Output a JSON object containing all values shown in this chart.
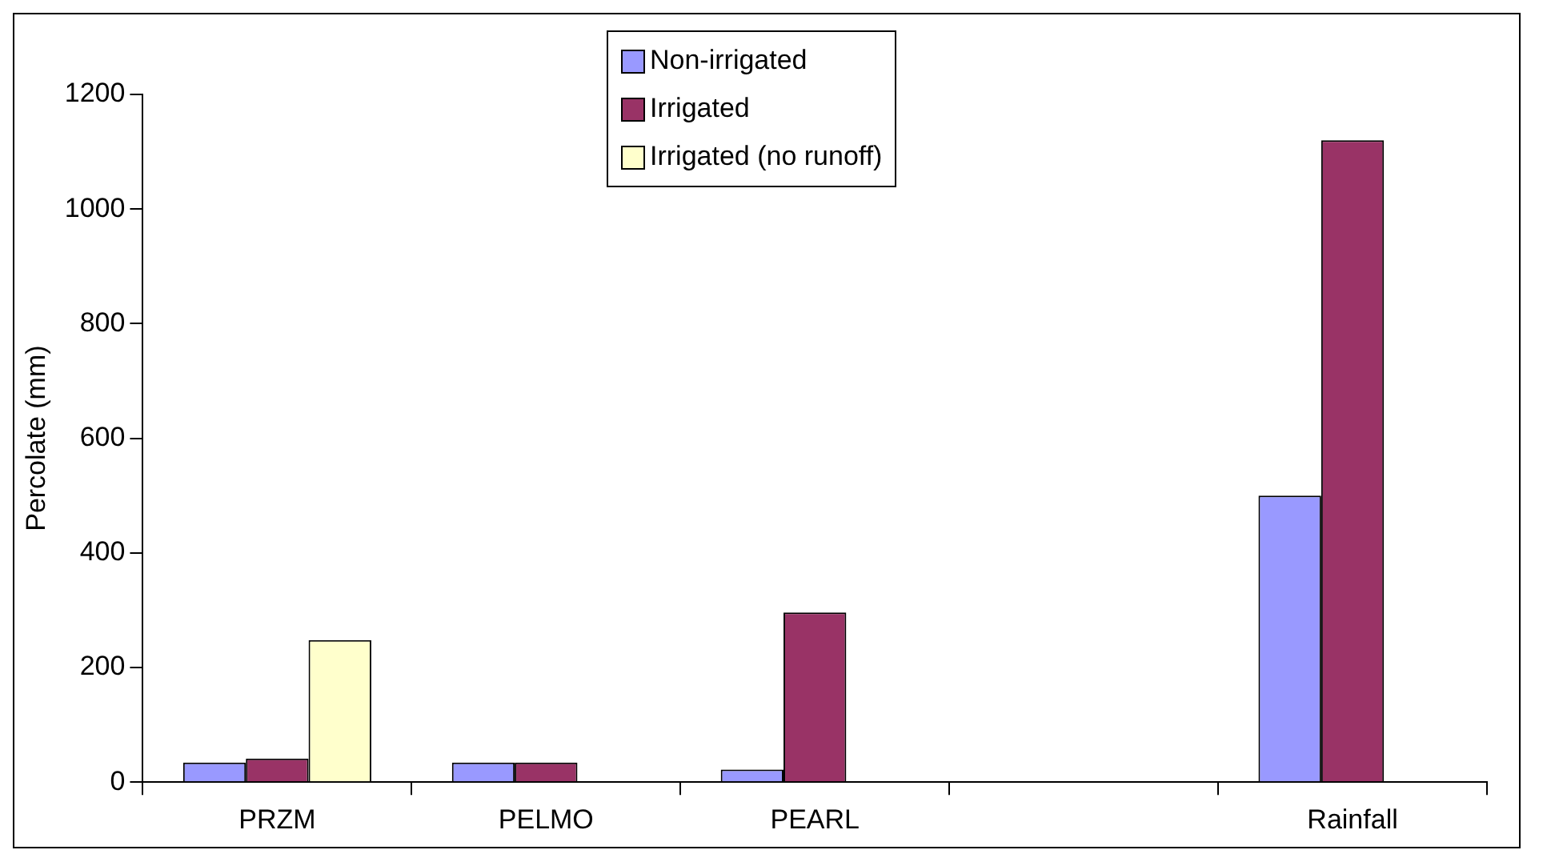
{
  "chart_data": {
    "type": "bar",
    "ylabel": "Percolate (mm)",
    "categories": [
      "PRZM",
      "PELMO",
      "PEARL",
      null,
      "Rainfall"
    ],
    "series": [
      {
        "name": "Non-irrigated",
        "color": "#9999ff",
        "values": [
          34,
          34,
          22,
          null,
          500
        ]
      },
      {
        "name": "Irrigated",
        "color": "#993366",
        "values": [
          41,
          34,
          296,
          null,
          1120
        ]
      },
      {
        "name": "Irrigated (no runoff)",
        "color": "#ffffcc",
        "values": [
          248,
          null,
          null,
          null,
          null
        ]
      }
    ],
    "ylim": [
      0,
      1200
    ],
    "yticks": [
      0,
      200,
      400,
      600,
      800,
      1000,
      1200
    ],
    "grid": false,
    "legend": "top"
  }
}
